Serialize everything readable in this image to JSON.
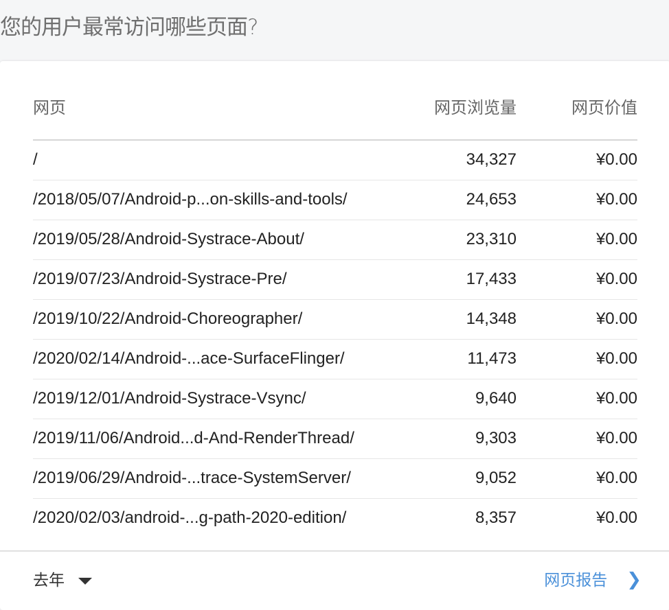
{
  "title": "您的用户最常访问哪些页面?",
  "table": {
    "headers": [
      "网页",
      "网页浏览量",
      "网页价值"
    ],
    "rows": [
      {
        "page": "/",
        "views": "34,327",
        "value": "¥0.00"
      },
      {
        "page": "/2018/05/07/Android-p...on-skills-and-tools/",
        "views": "24,653",
        "value": "¥0.00"
      },
      {
        "page": "/2019/05/28/Android-Systrace-About/",
        "views": "23,310",
        "value": "¥0.00"
      },
      {
        "page": "/2019/07/23/Android-Systrace-Pre/",
        "views": "17,433",
        "value": "¥0.00"
      },
      {
        "page": "/2019/10/22/Android-Choreographer/",
        "views": "14,348",
        "value": "¥0.00"
      },
      {
        "page": "/2020/02/14/Android-...ace-SurfaceFlinger/",
        "views": "11,473",
        "value": "¥0.00"
      },
      {
        "page": "/2019/12/01/Android-Systrace-Vsync/",
        "views": "9,640",
        "value": "¥0.00"
      },
      {
        "page": "/2019/11/06/Android...d-And-RenderThread/",
        "views": "9,303",
        "value": "¥0.00"
      },
      {
        "page": "/2019/06/29/Android-...trace-SystemServer/",
        "views": "9,052",
        "value": "¥0.00"
      },
      {
        "page": "/2020/02/03/android-...g-path-2020-edition/",
        "views": "8,357",
        "value": "¥0.00"
      }
    ]
  },
  "footer": {
    "range_label": "去年",
    "range_icon": "caret-down-icon",
    "report_label": "网页报告",
    "report_icon": "chevron-right-icon",
    "accent_color": "#4a90d9"
  }
}
